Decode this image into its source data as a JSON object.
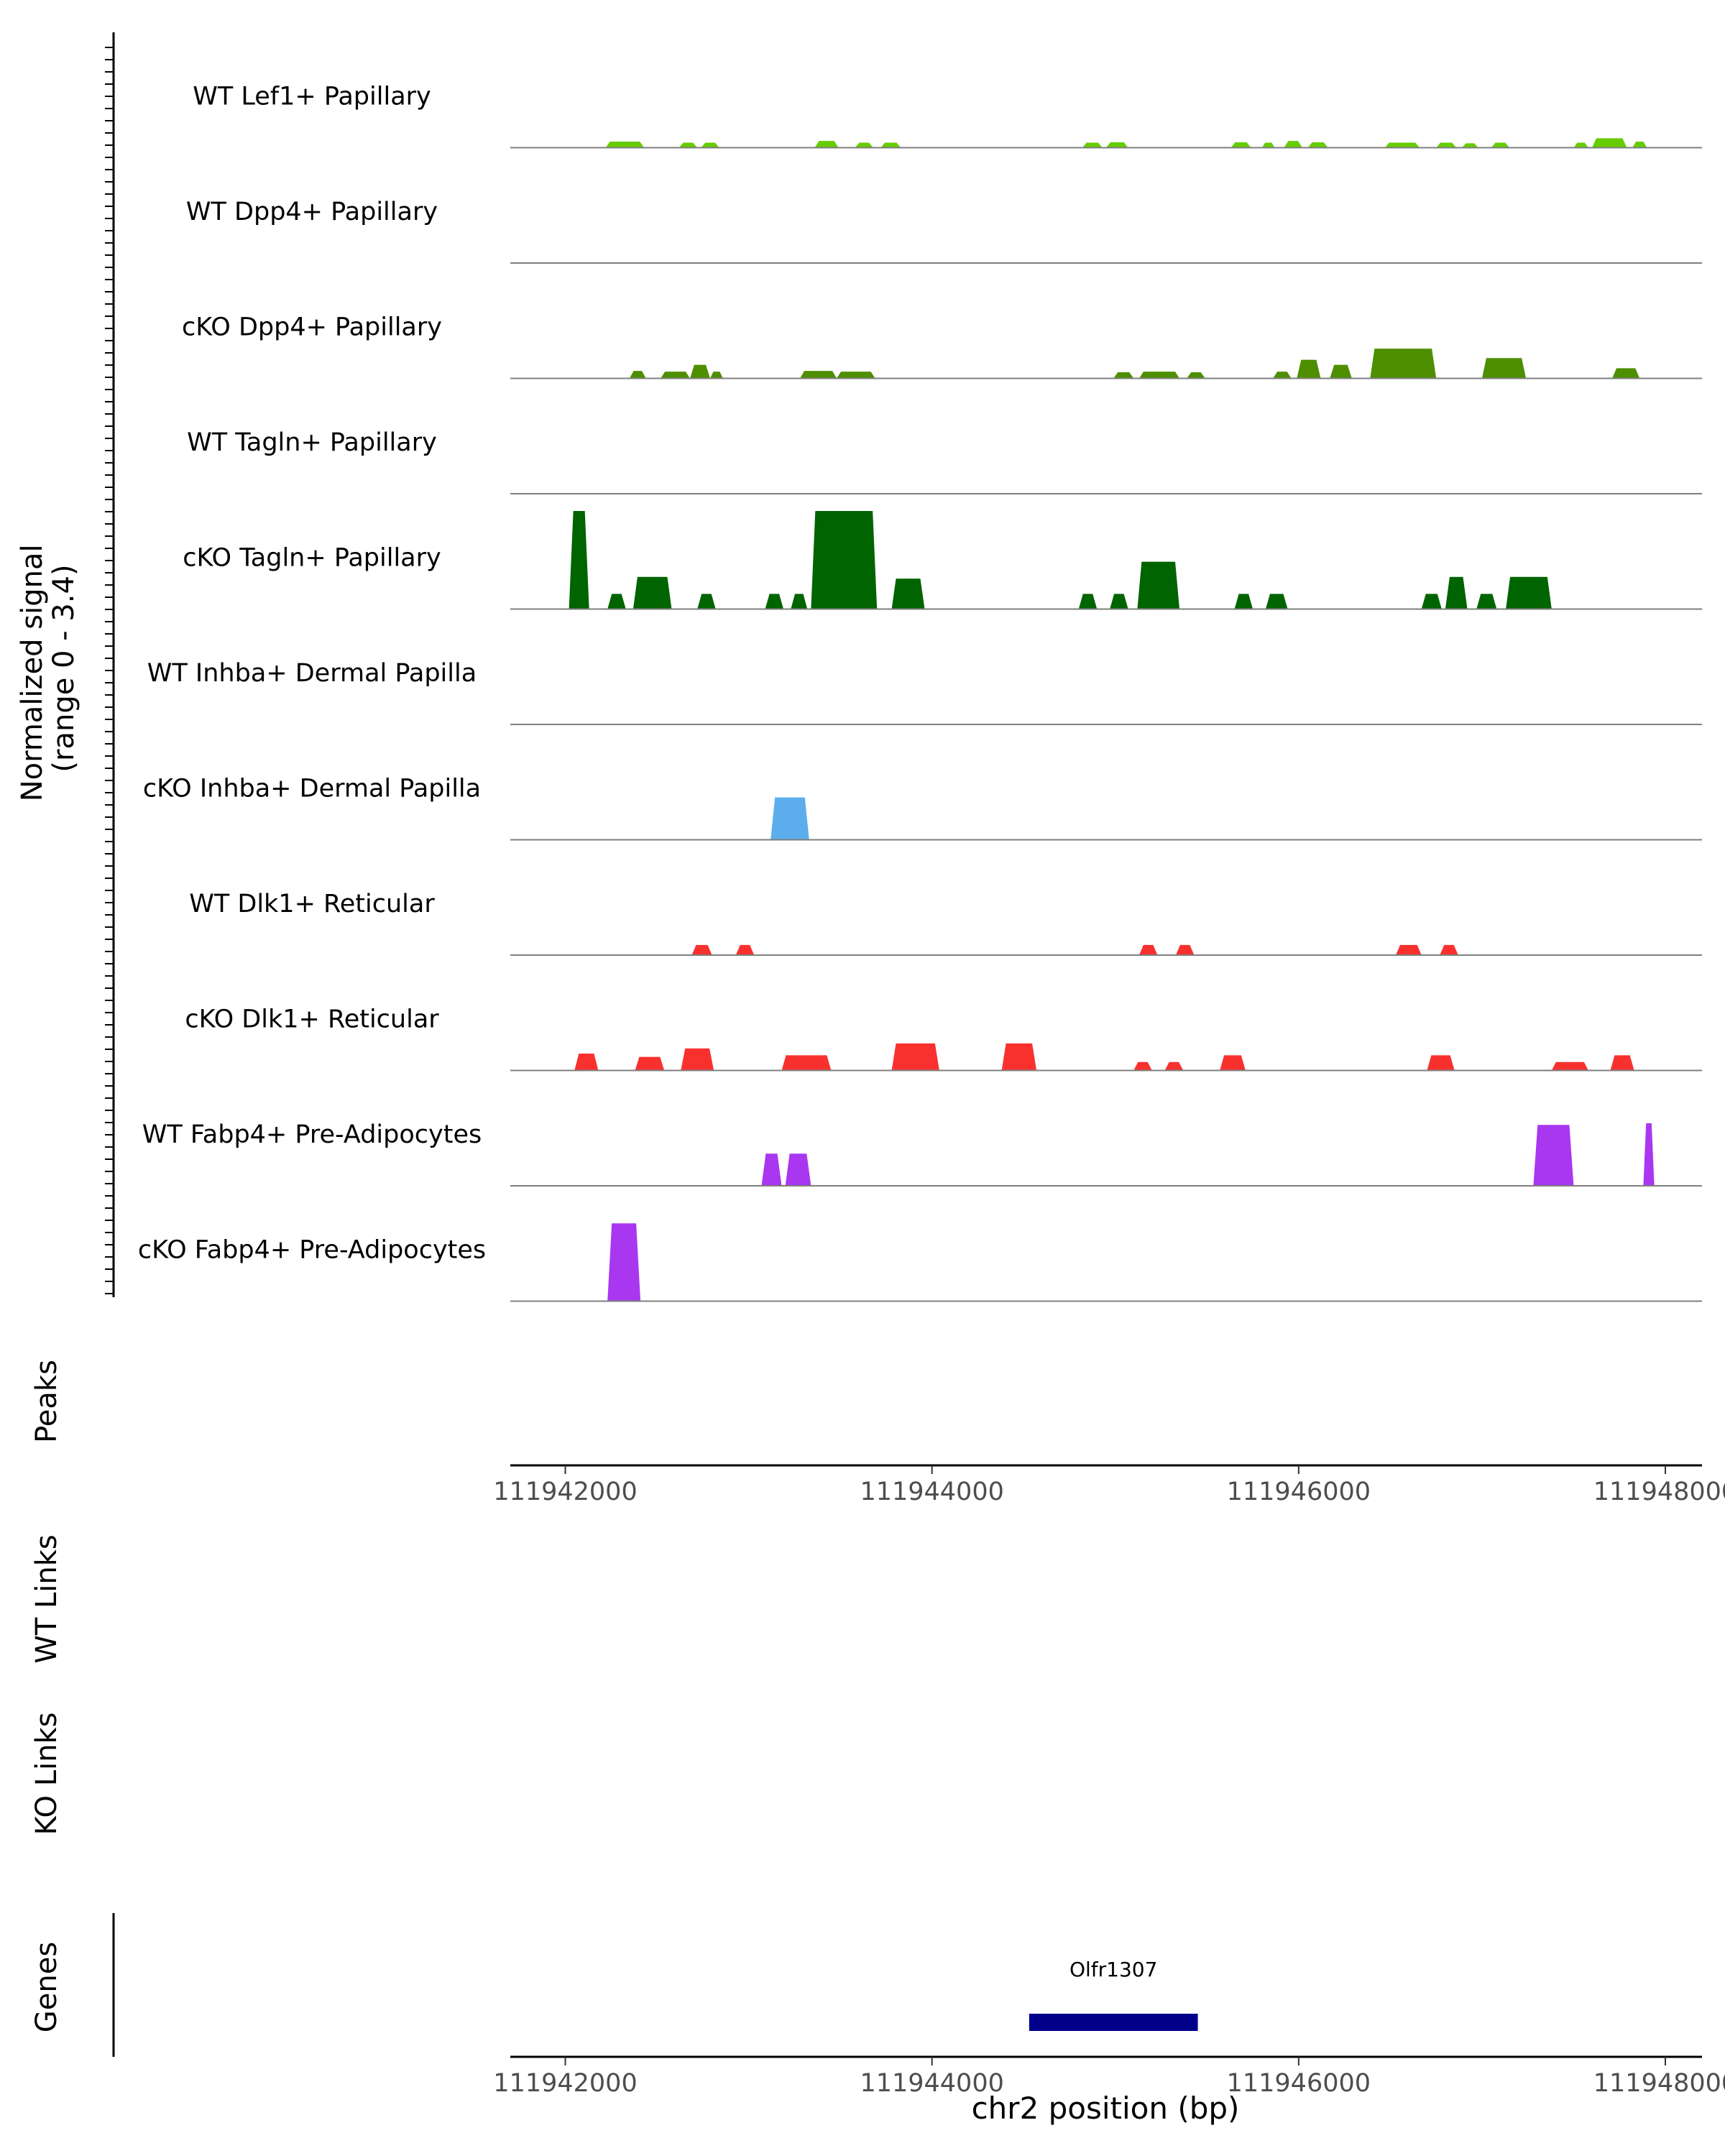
{
  "chart_data": {
    "type": "area",
    "region_axis": {
      "xlim": [
        111941700,
        111948200
      ],
      "ticks": [
        111942000,
        111944000,
        111946000,
        111948000
      ],
      "tick_labels": [
        "111942000",
        "111944000",
        "111946000",
        "111948000"
      ],
      "xlabel": "chr2 position (bp)"
    },
    "coverage": {
      "ylabel_line1": "Normalized signal",
      "ylabel_line2": "(range 0 - 3.4)",
      "ylim": [
        0,
        3.4
      ],
      "tracks": [
        {
          "name": "WT Lef1+ Papillary",
          "color": "#66CC00",
          "segments": [
            [
              111942220,
              111942430,
              0.18
            ],
            [
              111942620,
              111942720,
              0.15
            ],
            [
              111942740,
              111942840,
              0.15
            ],
            [
              111943360,
              111943490,
              0.2
            ],
            [
              111943580,
              111943680,
              0.15
            ],
            [
              111943720,
              111943830,
              0.15
            ],
            [
              111944820,
              111944930,
              0.15
            ],
            [
              111944950,
              111945070,
              0.16
            ],
            [
              111945630,
              111945740,
              0.16
            ],
            [
              111945800,
              111945870,
              0.15
            ],
            [
              111945920,
              111946020,
              0.2
            ],
            [
              111946050,
              111946160,
              0.16
            ],
            [
              111946470,
              111946660,
              0.15
            ],
            [
              111946750,
              111946860,
              0.15
            ],
            [
              111946890,
              111946980,
              0.13
            ],
            [
              111947050,
              111947150,
              0.15
            ],
            [
              111947500,
              111947580,
              0.15
            ],
            [
              111947600,
              111947790,
              0.28
            ],
            [
              111947820,
              111947900,
              0.18
            ]
          ]
        },
        {
          "name": "WT Dpp4+ Papillary",
          "color": "#4E8F00",
          "segments": []
        },
        {
          "name": "cKO Dpp4+ Papillary",
          "color": "#4E8F00",
          "segments": [
            [
              111942350,
              111942440,
              0.22
            ],
            [
              111942520,
              111942680,
              0.2
            ],
            [
              111942680,
              111942790,
              0.4
            ],
            [
              111942790,
              111942860,
              0.2
            ],
            [
              111943280,
              111943480,
              0.22
            ],
            [
              111943480,
              111943690,
              0.2
            ],
            [
              111944990,
              111945100,
              0.18
            ],
            [
              111945130,
              111945350,
              0.2
            ],
            [
              111945390,
              111945490,
              0.18
            ],
            [
              111945860,
              111945960,
              0.2
            ],
            [
              111945990,
              111946120,
              0.55
            ],
            [
              111946170,
              111946290,
              0.4
            ],
            [
              111946390,
              111946750,
              0.88
            ],
            [
              111947000,
              111947240,
              0.6
            ],
            [
              111947710,
              111947860,
              0.3
            ]
          ]
        },
        {
          "name": "WT Tagln+ Papillary",
          "color": "#006400",
          "segments": []
        },
        {
          "name": "cKO Tagln+ Papillary",
          "color": "#006400",
          "segments": [
            [
              111942020,
              111942130,
              2.9
            ],
            [
              111942230,
              111942330,
              0.45
            ],
            [
              111942370,
              111942580,
              0.95
            ],
            [
              111942720,
              111942820,
              0.45
            ],
            [
              111943090,
              111943190,
              0.45
            ],
            [
              111943230,
              111943320,
              0.45
            ],
            [
              111943340,
              111943700,
              2.9
            ],
            [
              111943780,
              111943960,
              0.9
            ],
            [
              111944800,
              111944900,
              0.45
            ],
            [
              111944970,
              111945070,
              0.45
            ],
            [
              111945120,
              111945350,
              1.4
            ],
            [
              111945650,
              111945750,
              0.45
            ],
            [
              111945820,
              111945940,
              0.45
            ],
            [
              111946670,
              111946780,
              0.45
            ],
            [
              111946800,
              111946920,
              0.95
            ],
            [
              111946970,
              111947080,
              0.45
            ],
            [
              111947130,
              111947380,
              0.95
            ]
          ]
        },
        {
          "name": "WT Inhba+ Dermal Papilla",
          "color": "#5BAEEB",
          "segments": []
        },
        {
          "name": "cKO Inhba+ Dermal Papilla",
          "color": "#5BAEEB",
          "segments": [
            [
              111943120,
              111943330,
              1.25
            ]
          ]
        },
        {
          "name": "WT Dlk1+ Reticular",
          "color": "#F8312F",
          "segments": [
            [
              111942690,
              111942800,
              0.3
            ],
            [
              111942930,
              111943030,
              0.3
            ],
            [
              111945130,
              111945230,
              0.3
            ],
            [
              111945330,
              111945430,
              0.3
            ],
            [
              111946530,
              111946670,
              0.3
            ],
            [
              111946770,
              111946870,
              0.3
            ]
          ]
        },
        {
          "name": "cKO Dlk1+ Reticular",
          "color": "#F8312F",
          "segments": [
            [
              111942050,
              111942180,
              0.5
            ],
            [
              111942380,
              111942540,
              0.4
            ],
            [
              111942630,
              111942810,
              0.65
            ],
            [
              111943180,
              111943450,
              0.45
            ],
            [
              111943780,
              111944040,
              0.8
            ],
            [
              111944380,
              111944570,
              0.8
            ],
            [
              111945100,
              111945200,
              0.25
            ],
            [
              111945270,
              111945370,
              0.25
            ],
            [
              111945570,
              111945710,
              0.45
            ],
            [
              111946700,
              111946850,
              0.45
            ],
            [
              111947380,
              111947580,
              0.25
            ],
            [
              111947700,
              111947830,
              0.45
            ]
          ]
        },
        {
          "name": "WT Fabp4+ Pre-Adipocytes",
          "color": "#A937F0",
          "segments": [
            [
              111943070,
              111943180,
              0.95
            ],
            [
              111943200,
              111943340,
              0.95
            ],
            [
              111947280,
              111947500,
              1.8
            ],
            [
              111947880,
              111947940,
              1.85
            ]
          ]
        },
        {
          "name": "cKO Fabp4+ Pre-Adipocytes",
          "color": "#A937F0",
          "segments": [
            [
              111942230,
              111942410,
              2.3
            ]
          ]
        }
      ]
    },
    "peaks": {
      "label": "Peaks",
      "items": []
    },
    "wt_links": {
      "label": "WT Links",
      "items": []
    },
    "ko_links": {
      "label": "KO Links",
      "items": []
    },
    "genes": {
      "label": "Genes",
      "items": [
        {
          "name": "Olfr1307",
          "start": 111944530,
          "end": 111945450,
          "color": "#00008B"
        }
      ]
    }
  }
}
